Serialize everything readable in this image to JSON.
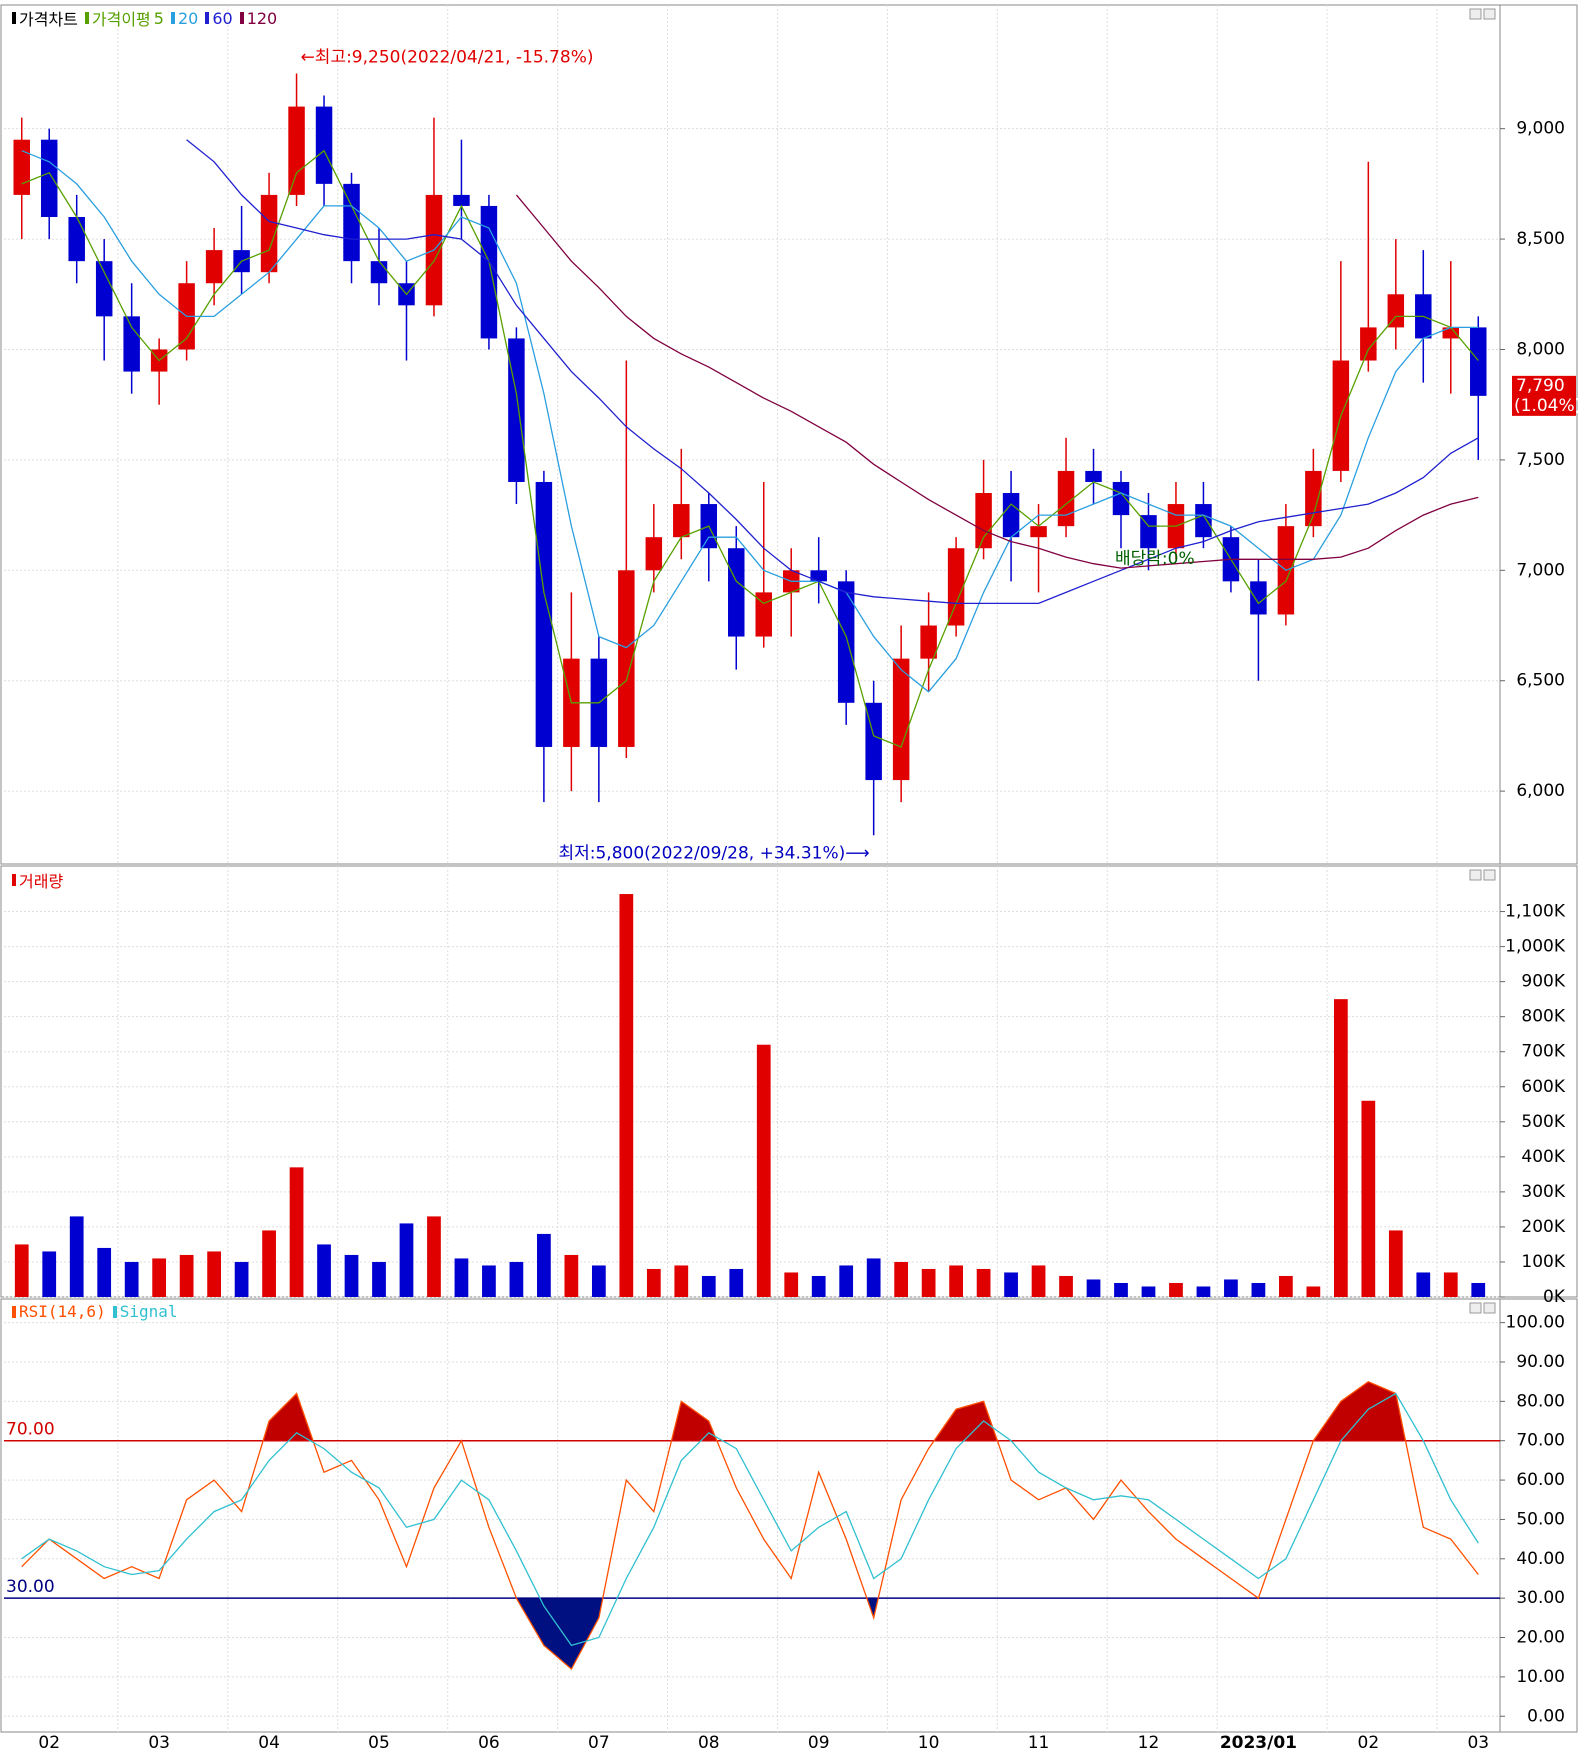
{
  "chart_data": [
    {
      "type": "candlestick",
      "title": "가격차트",
      "categories": [
        "02",
        null,
        null,
        null,
        "03",
        null,
        null,
        null,
        "04",
        null,
        null,
        null,
        "05",
        null,
        null,
        null,
        "06",
        null,
        null,
        null,
        "07",
        null,
        null,
        null,
        "08",
        null,
        null,
        null,
        "09",
        null,
        null,
        null,
        "10",
        null,
        null,
        null,
        "11",
        null,
        null,
        null,
        "12",
        null,
        null,
        null,
        "2023/01",
        null,
        null,
        null,
        "02",
        null,
        null,
        null,
        "03",
        null
      ],
      "open": [
        8700,
        8950,
        8600,
        8400,
        8150,
        7900,
        8000,
        8300,
        8450,
        8350,
        8700,
        9100,
        8750,
        8400,
        8300,
        8200,
        8700,
        8650,
        8050,
        7400,
        6200,
        6600,
        6200,
        7000,
        7150,
        7300,
        7100,
        6700,
        6900,
        7000,
        6950,
        6400,
        6050,
        6600,
        6750,
        7100,
        7350,
        7150,
        7200,
        7450,
        7400,
        7250,
        7100,
        7300,
        7150,
        6950,
        6800,
        7200,
        7450,
        7950,
        8100,
        8250,
        8050,
        8100
      ],
      "high": [
        9050,
        9000,
        8700,
        8500,
        8300,
        8050,
        8400,
        8550,
        8650,
        8800,
        9250,
        9150,
        8800,
        8550,
        8400,
        9050,
        8950,
        8700,
        8100,
        7450,
        6900,
        6700,
        7950,
        7300,
        7550,
        7350,
        7200,
        7400,
        7100,
        7150,
        7000,
        6500,
        6750,
        6900,
        7150,
        7500,
        7450,
        7300,
        7600,
        7550,
        7450,
        7350,
        7400,
        7400,
        7200,
        7050,
        7300,
        7550,
        8400,
        8850,
        8500,
        8450,
        8400,
        8150
      ],
      "low": [
        8500,
        8500,
        8300,
        7950,
        7800,
        7750,
        7950,
        8200,
        8250,
        8300,
        8650,
        8650,
        8300,
        8200,
        7950,
        8150,
        8500,
        8000,
        7300,
        5950,
        6000,
        5950,
        6150,
        6900,
        7050,
        6950,
        6550,
        6650,
        6700,
        6850,
        6300,
        5800,
        5950,
        6450,
        6700,
        7050,
        6950,
        6900,
        7150,
        7300,
        7100,
        7000,
        7050,
        7100,
        6900,
        6500,
        6750,
        7150,
        7400,
        7900,
        8000,
        7850,
        7800,
        7500
      ],
      "close": [
        8950,
        8600,
        8400,
        8150,
        7900,
        8000,
        8300,
        8450,
        8350,
        8700,
        9100,
        8750,
        8400,
        8300,
        8200,
        8700,
        8650,
        8050,
        7400,
        6200,
        6600,
        6200,
        7000,
        7150,
        7300,
        7100,
        6700,
        6900,
        7000,
        6950,
        6400,
        6050,
        6600,
        6750,
        7100,
        7350,
        7150,
        7200,
        7450,
        7400,
        7250,
        7100,
        7300,
        7150,
        6950,
        6800,
        7200,
        7450,
        7950,
        8100,
        8250,
        8050,
        8100,
        7790
      ],
      "up_color": "#e00000",
      "down_color": "#0000d0",
      "ylim": [
        5670,
        9560
      ],
      "yticks": [
        {
          "value": 6000,
          "label": "6,000"
        },
        {
          "value": 6500,
          "label": "6,500"
        },
        {
          "value": 7000,
          "label": "7,000"
        },
        {
          "value": 7500,
          "label": "7,500"
        },
        {
          "value": 8000,
          "label": "8,000"
        },
        {
          "value": 8500,
          "label": "8,500"
        },
        {
          "value": 9000,
          "label": "9,000"
        }
      ],
      "grid": true,
      "moving_average_title": "가격이평",
      "series": [
        {
          "name": "5",
          "color": "#58a000",
          "values": [
            8750,
            8800,
            8600,
            8350,
            8100,
            7950,
            8050,
            8250,
            8400,
            8450,
            8800,
            8900,
            8650,
            8400,
            8250,
            8400,
            8650,
            8400,
            7800,
            6900,
            6400,
            6400,
            6500,
            6950,
            7150,
            7200,
            6950,
            6850,
            6900,
            6950,
            6700,
            6250,
            6200,
            6550,
            6850,
            7150,
            7300,
            7200,
            7300,
            7400,
            7350,
            7200,
            7200,
            7250,
            7050,
            6850,
            6950,
            7250,
            7700,
            8000,
            8150,
            8150,
            8100,
            7950
          ]
        },
        {
          "name": "20",
          "color": "#2a9fe0",
          "values": [
            8900,
            8850,
            8750,
            8600,
            8400,
            8250,
            8150,
            8150,
            8250,
            8350,
            8500,
            8650,
            8650,
            8550,
            8400,
            8450,
            8600,
            8550,
            8300,
            7800,
            7200,
            6700,
            6650,
            6750,
            6950,
            7150,
            7150,
            7000,
            6950,
            6950,
            6900,
            6700,
            6550,
            6450,
            6600,
            6900,
            7150,
            7250,
            7250,
            7300,
            7350,
            7300,
            7250,
            7250,
            7200,
            7100,
            7000,
            7050,
            7250,
            7600,
            7900,
            8050,
            8100,
            8100
          ]
        },
        {
          "name": "60",
          "color": "#2020d0",
          "values": [
            null,
            null,
            null,
            null,
            null,
            null,
            8950,
            8850,
            8700,
            8580,
            8550,
            8520,
            8500,
            8500,
            8500,
            8520,
            8500,
            8400,
            8200,
            8050,
            7900,
            7780,
            7650,
            7550,
            7460,
            7350,
            7230,
            7100,
            7000,
            6950,
            6900,
            6880,
            6870,
            6860,
            6850,
            6850,
            6850,
            6850,
            6900,
            6950,
            7000,
            7050,
            7100,
            7130,
            7180,
            7220,
            7240,
            7260,
            7280,
            7300,
            7350,
            7420,
            7530,
            7600
          ]
        },
        {
          "name": "120",
          "color": "#800040",
          "values": [
            null,
            null,
            null,
            null,
            null,
            null,
            null,
            null,
            null,
            null,
            null,
            null,
            null,
            null,
            null,
            null,
            null,
            null,
            8700,
            8550,
            8400,
            8280,
            8150,
            8050,
            7980,
            7920,
            7850,
            7780,
            7720,
            7650,
            7580,
            7480,
            7400,
            7320,
            7250,
            7180,
            7130,
            7100,
            7060,
            7030,
            7010,
            7020,
            7030,
            7040,
            7050,
            7050,
            7050,
            7050,
            7060,
            7100,
            7180,
            7250,
            7300,
            7330
          ]
        }
      ],
      "high_note": {
        "text": "←최고:9,250(2022/04/21, -15.78%)",
        "value": 9250
      },
      "low_note": {
        "text": "최저:5,800(2022/09/28, +34.31%)⟶",
        "value": 5800
      },
      "ex_dividend_note": "배당락:0%",
      "last_price": {
        "value": 7790,
        "label": "7,790",
        "change": "(1.04%)"
      }
    },
    {
      "type": "volume",
      "title": "거래량",
      "values": [
        150000,
        130000,
        230000,
        140000,
        100000,
        110000,
        120000,
        130000,
        100000,
        190000,
        370000,
        150000,
        120000,
        100000,
        210000,
        230000,
        110000,
        90000,
        100000,
        180000,
        120000,
        90000,
        1150000,
        80000,
        90000,
        60000,
        80000,
        720000,
        70000,
        60000,
        90000,
        110000,
        100000,
        80000,
        90000,
        80000,
        70000,
        90000,
        60000,
        50000,
        40000,
        30000,
        40000,
        30000,
        50000,
        40000,
        60000,
        30000,
        850000,
        560000,
        190000,
        70000,
        70000,
        40000
      ],
      "up_color": "#e00000",
      "down_color": "#0000d0",
      "ylim": [
        0,
        1230000
      ],
      "yticks": [
        {
          "value": 0,
          "label": "0K"
        },
        {
          "value": 100000,
          "label": "100K"
        },
        {
          "value": 200000,
          "label": "200K"
        },
        {
          "value": 300000,
          "label": "300K"
        },
        {
          "value": 400000,
          "label": "400K"
        },
        {
          "value": 500000,
          "label": "500K"
        },
        {
          "value": 600000,
          "label": "600K"
        },
        {
          "value": 700000,
          "label": "700K"
        },
        {
          "value": 800000,
          "label": "800K"
        },
        {
          "value": 900000,
          "label": "900K"
        },
        {
          "value": 1000000,
          "label": "1,000K"
        },
        {
          "value": 1100000,
          "label": "1,100K"
        }
      ],
      "grid": true
    },
    {
      "type": "rsi",
      "series": [
        {
          "name": "RSI(14,6)",
          "color": "#ff5000",
          "values": [
            38,
            45,
            40,
            35,
            38,
            35,
            55,
            60,
            52,
            75,
            82,
            62,
            65,
            55,
            38,
            58,
            70,
            48,
            30,
            18,
            12,
            25,
            60,
            52,
            80,
            75,
            58,
            45,
            35,
            62,
            45,
            25,
            55,
            68,
            78,
            80,
            60,
            55,
            58,
            50,
            60,
            52,
            45,
            40,
            35,
            30,
            50,
            70,
            80,
            85,
            82,
            48,
            45,
            36
          ]
        },
        {
          "name": "Signal",
          "color": "#30c0d0",
          "values": [
            40,
            45,
            42,
            38,
            36,
            37,
            45,
            52,
            55,
            65,
            72,
            68,
            62,
            58,
            48,
            50,
            60,
            55,
            42,
            28,
            18,
            20,
            35,
            48,
            65,
            72,
            68,
            55,
            42,
            48,
            52,
            35,
            40,
            55,
            68,
            75,
            70,
            62,
            58,
            55,
            56,
            55,
            50,
            45,
            40,
            35,
            40,
            55,
            70,
            78,
            82,
            70,
            55,
            44
          ]
        }
      ],
      "levels": [
        {
          "value": 70,
          "label": "70.00",
          "color": "#d00000"
        },
        {
          "value": 30,
          "label": "30.00",
          "color": "#000080"
        }
      ],
      "fill_above_color": "#c00000",
      "fill_below_color": "#001080",
      "ylim": [
        -4,
        106
      ],
      "yticks": [
        {
          "value": 0,
          "label": "0.00"
        },
        {
          "value": 10,
          "label": "10.00"
        },
        {
          "value": 20,
          "label": "20.00"
        },
        {
          "value": 30,
          "label": "30.00"
        },
        {
          "value": 40,
          "label": "40.00"
        },
        {
          "value": 50,
          "label": "50.00"
        },
        {
          "value": 60,
          "label": "60.00"
        },
        {
          "value": 70,
          "label": "70.00"
        },
        {
          "value": 80,
          "label": "80.00"
        },
        {
          "value": 90,
          "label": "90.00"
        },
        {
          "value": 100,
          "label": "100.00"
        }
      ],
      "grid": true
    }
  ]
}
